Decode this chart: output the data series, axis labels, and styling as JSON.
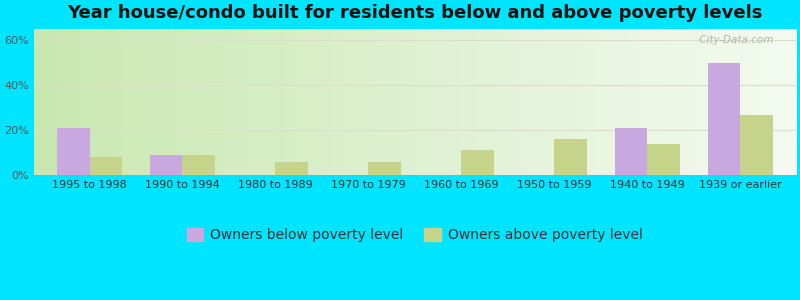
{
  "title": "Year house/condo built for residents below and above poverty levels",
  "categories": [
    "1995 to 1998",
    "1990 to 1994",
    "1980 to 1989",
    "1970 to 1979",
    "1960 to 1969",
    "1950 to 1959",
    "1940 to 1949",
    "1939 or earlier"
  ],
  "below_poverty": [
    21,
    9,
    0,
    0,
    0,
    0,
    21,
    50
  ],
  "above_poverty": [
    8,
    9,
    6,
    6,
    11,
    16,
    14,
    27
  ],
  "below_color": "#c9a8e0",
  "above_color": "#c5d48a",
  "bar_width": 0.35,
  "ylim": [
    0,
    65
  ],
  "yticks": [
    0,
    20,
    40,
    60
  ],
  "ytick_labels": [
    "0%",
    "20%",
    "40%",
    "60%"
  ],
  "outer_bg": "#00e5ff",
  "title_fontsize": 13,
  "tick_fontsize": 8,
  "legend_fontsize": 10,
  "legend_below_label": "Owners below poverty level",
  "legend_above_label": "Owners above poverty level",
  "watermark": " City-Data.com",
  "grid_color": "#ddddcc",
  "plot_bg_left": "#c8e8b0",
  "plot_bg_right": "#f4faf0"
}
